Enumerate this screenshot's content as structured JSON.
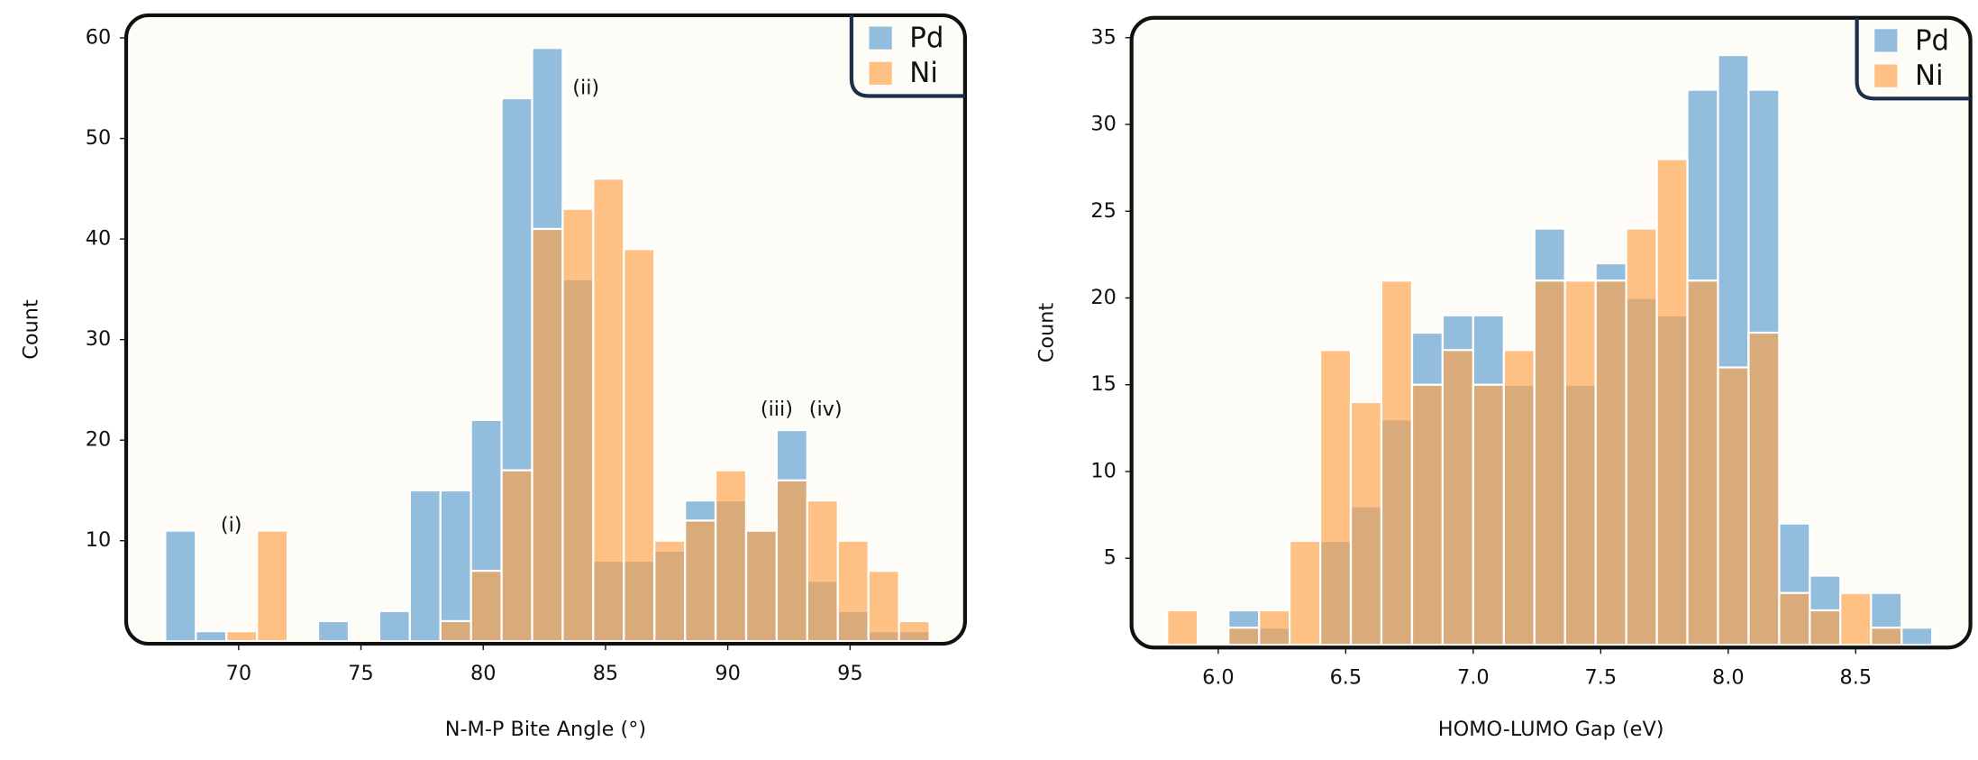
{
  "chart_data": [
    {
      "type": "histogram",
      "xlabel": "N-M-P Bite Angle (°)",
      "ylabel": "Count",
      "bins": [
        67,
        68.25,
        69.5,
        70.75,
        72,
        73.25,
        74.5,
        75.75,
        77,
        78.25,
        79.5,
        80.75,
        82,
        83.25,
        84.5,
        85.75,
        87,
        88.25,
        89.5,
        90.75,
        92,
        93.25,
        94.5,
        95.75,
        97,
        98.25
      ],
      "series": [
        {
          "name": "Pd",
          "color": "#5b9bd0",
          "values": [
            11,
            1,
            0,
            0,
            0,
            2,
            0,
            3,
            15,
            15,
            22,
            54,
            59,
            36,
            8,
            8,
            9,
            14,
            14,
            11,
            21,
            6,
            3,
            1,
            1
          ]
        },
        {
          "name": "Ni",
          "color": "#ff9f45",
          "values": [
            0,
            0,
            1,
            11,
            0,
            0,
            0,
            0,
            0,
            2,
            7,
            17,
            41,
            43,
            46,
            39,
            10,
            12,
            17,
            11,
            16,
            14,
            10,
            7,
            2
          ]
        }
      ],
      "xlim": [
        65.4,
        99.7
      ],
      "xticks": [
        70,
        75,
        80,
        85,
        90,
        95
      ],
      "ylim": [
        0,
        62
      ],
      "yticks": [
        10,
        20,
        30,
        40,
        50,
        60
      ],
      "legend": "upper right",
      "annotations": [
        {
          "text": "(i)",
          "x": 69.7,
          "y": 11.5
        },
        {
          "text": "(ii)",
          "x": 84.2,
          "y": 55
        },
        {
          "text": "(iii)",
          "x": 92,
          "y": 23
        },
        {
          "text": "(iv)",
          "x": 94,
          "y": 23
        }
      ]
    },
    {
      "type": "histogram",
      "xlabel": "HOMO-LUMO Gap (eV)",
      "ylabel": "Count",
      "bins": [
        5.8,
        5.92,
        6.04,
        6.16,
        6.28,
        6.4,
        6.52,
        6.64,
        6.76,
        6.88,
        7.0,
        7.12,
        7.24,
        7.36,
        7.48,
        7.6,
        7.72,
        7.84,
        7.96,
        8.08,
        8.2,
        8.32,
        8.44,
        8.56,
        8.68,
        8.8
      ],
      "series": [
        {
          "name": "Pd",
          "color": "#5b9bd0",
          "values": [
            0,
            0,
            2,
            1,
            0,
            6,
            8,
            13,
            18,
            19,
            19,
            15,
            24,
            15,
            22,
            20,
            19,
            32,
            34,
            32,
            7,
            4,
            0,
            3,
            1
          ]
        },
        {
          "name": "Ni",
          "color": "#ff9f45",
          "values": [
            2,
            0,
            1,
            2,
            6,
            17,
            14,
            21,
            15,
            17,
            15,
            17,
            21,
            21,
            21,
            24,
            28,
            21,
            16,
            18,
            3,
            2,
            3,
            1,
            0
          ]
        }
      ],
      "xlim": [
        5.66,
        8.95
      ],
      "xticks": [
        {
          "value": 6,
          "label": "6.0"
        },
        6.5,
        {
          "value": 7,
          "label": "7.0"
        },
        7.5,
        {
          "value": 8,
          "label": "8.0"
        },
        8.5
      ],
      "ylim": [
        0,
        36
      ],
      "yticks": [
        5,
        10,
        15,
        20,
        25,
        30,
        35
      ],
      "legend": "upper right",
      "annotations": []
    }
  ]
}
